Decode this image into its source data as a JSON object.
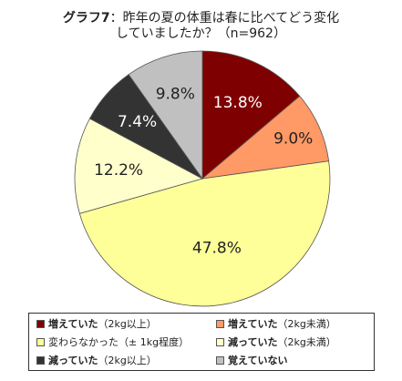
{
  "title": {
    "line1_bold": "グラフ7",
    "line1_rest": "：昨年の夏の体重は春に比べてどう変化",
    "line2": "していましたか？（n=962）"
  },
  "chart_data": {
    "type": "pie",
    "labels": [
      "増えていた（2kg以上）",
      "増えていた（2kg未満）",
      "変わらなかった（±1kg程度）",
      "減っていた（2kg未満）",
      "減っていた（2kg以上）",
      "覚えていない"
    ],
    "values": [
      13.8,
      9.0,
      47.8,
      12.2,
      7.4,
      9.8
    ],
    "value_labels": [
      "13.8%",
      "9.0%",
      "47.8%",
      "12.2%",
      "7.4%",
      "9.8%"
    ],
    "colors": [
      "#7f0000",
      "#ff9966",
      "#ffff99",
      "#ffffcc",
      "#333333",
      "#c0c0c0"
    ],
    "label_colors": [
      "#ffffff",
      "#222222",
      "#222222",
      "#222222",
      "#ffffff",
      "#222222"
    ],
    "start": "12 o'clock",
    "direction": "clockwise",
    "legend": {
      "placement": "bottom",
      "entries": [
        {
          "bold": "増えていた",
          "rest": "（2kg以上）"
        },
        {
          "bold": "増えていた",
          "rest": "（2kg未満）"
        },
        {
          "bold": "",
          "rest": "変わらなかった（± 1kg程度）"
        },
        {
          "bold": "減っていた",
          "rest": "（2kg未満）"
        },
        {
          "bold": "減っていた",
          "rest": "（2kg以上）"
        },
        {
          "bold": "覚えていない",
          "rest": ""
        }
      ]
    }
  }
}
